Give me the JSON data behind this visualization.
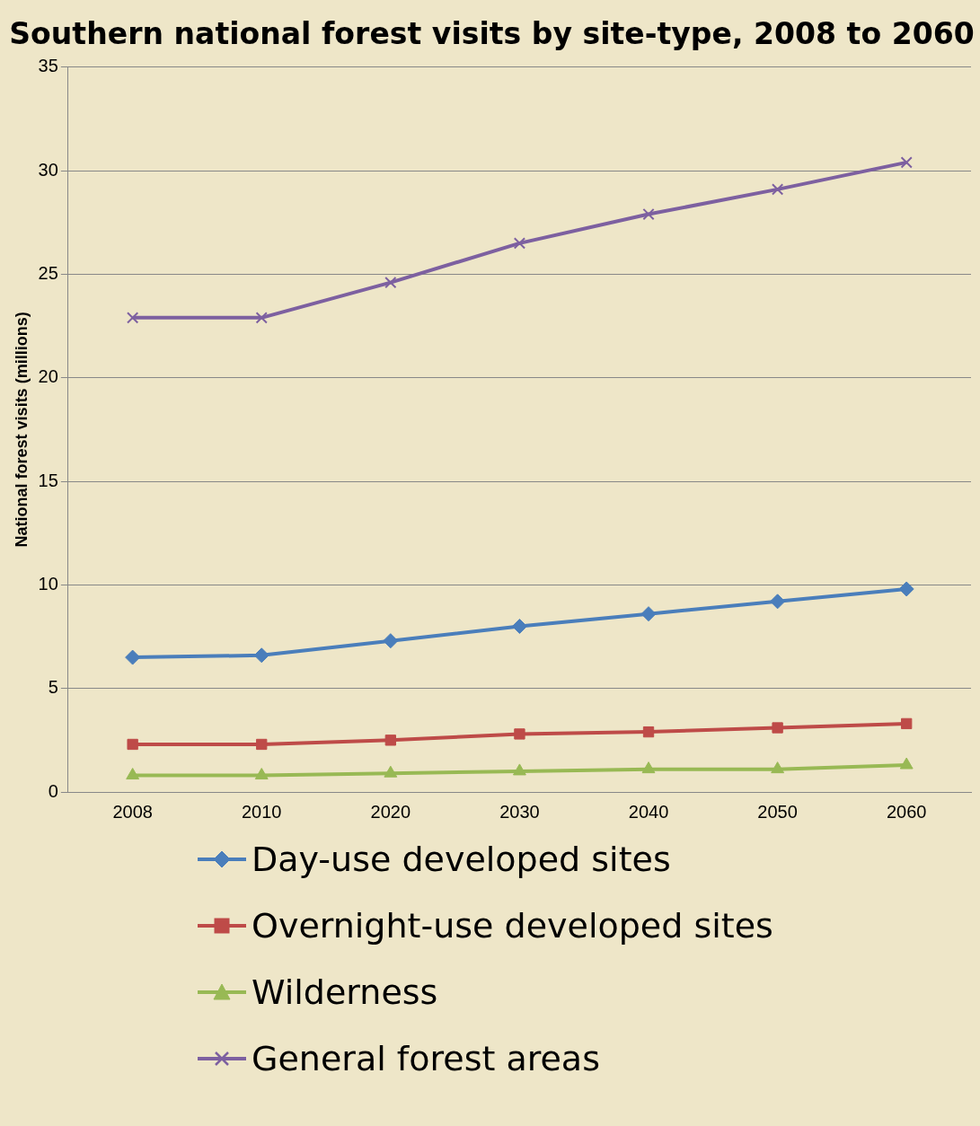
{
  "chart_data": {
    "type": "line",
    "title": "Southern national forest visits by site-type, 2008 to 2060",
    "ylabel": "National forest visits (millions)",
    "categories": [
      "2008",
      "2010",
      "2020",
      "2030",
      "2040",
      "2050",
      "2060"
    ],
    "series": [
      {
        "name": "Day-use developed sites",
        "color": "#4a7ebb",
        "marker": "diamond",
        "values": [
          6.5,
          6.6,
          7.3,
          8.0,
          8.6,
          9.2,
          9.8
        ]
      },
      {
        "name": "Overnight-use developed sites",
        "color": "#be4b48",
        "marker": "square",
        "values": [
          2.3,
          2.3,
          2.5,
          2.8,
          2.9,
          3.1,
          3.3
        ]
      },
      {
        "name": "Wilderness",
        "color": "#98b954",
        "marker": "triangle",
        "values": [
          0.8,
          0.8,
          0.9,
          1.0,
          1.1,
          1.1,
          1.3
        ]
      },
      {
        "name": "General forest areas",
        "color": "#7d60a0",
        "marker": "cross",
        "values": [
          22.9,
          22.9,
          24.6,
          26.5,
          27.9,
          29.1,
          30.4
        ]
      }
    ],
    "ylim": [
      0,
      35
    ],
    "yticks": [
      0,
      5,
      10,
      15,
      20,
      25,
      30,
      35
    ],
    "grid": "y",
    "legend": "bottom",
    "line_style": "solid"
  }
}
